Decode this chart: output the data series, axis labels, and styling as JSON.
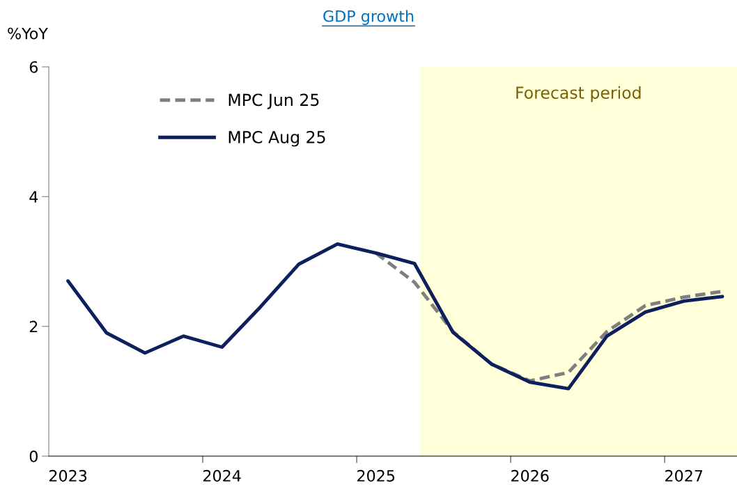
{
  "chart_data": {
    "type": "line",
    "title": "GDP growth",
    "ylabel": "%YoY",
    "xlim": [
      2022.875,
      2027.345
    ],
    "ylim": [
      0,
      6
    ],
    "yticks": [
      0,
      2,
      4,
      6
    ],
    "xticks": [
      {
        "value": 2023.875,
        "label": null
      },
      {
        "value": 2024.875,
        "label": null
      },
      {
        "value": 2025.875,
        "label": null
      },
      {
        "value": 2026.875,
        "label": null
      },
      2023,
      2024,
      2025,
      2026,
      2027
    ],
    "x": [
      2023,
      2023.25,
      2023.5,
      2023.75,
      2024,
      2024.25,
      2024.5,
      2024.75,
      2025,
      2025.25,
      2025.5,
      2025.75,
      2026,
      2026.25,
      2026.5,
      2026.75,
      2027,
      2027.25
    ],
    "series": [
      {
        "name": "MPC Jun 25",
        "color": "#7f7f7f",
        "line_style": "dashed",
        "values": [
          null,
          null,
          null,
          null,
          null,
          null,
          null,
          null,
          3.13,
          2.68,
          1.92,
          1.42,
          1.16,
          1.29,
          1.92,
          2.32,
          2.45,
          2.54
        ]
      },
      {
        "name": "MPC Aug 25",
        "color": "#0d1f5c",
        "line_style": "solid",
        "values": [
          2.7,
          1.9,
          1.59,
          1.85,
          1.68,
          2.3,
          2.96,
          3.27,
          3.13,
          2.97,
          1.91,
          1.42,
          1.14,
          1.04,
          1.85,
          2.22,
          2.39,
          2.46
        ]
      }
    ],
    "bands": [
      {
        "axis": "x",
        "from": 2025.285,
        "to": 2027.345,
        "label": "Forecast period",
        "color": "#ffffd9"
      }
    ],
    "legend": "top left",
    "grid": false,
    "marker": "none"
  }
}
